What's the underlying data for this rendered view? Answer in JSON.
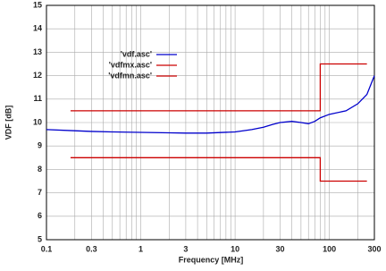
{
  "chart_data": {
    "type": "line",
    "x_label": "Frequency [MHz]",
    "y_label": "VDF [dB]",
    "x_log": true,
    "grid": true,
    "legend": "upper left",
    "xlim": [
      0.1,
      300
    ],
    "ylim": [
      5,
      15
    ],
    "xticks": [
      0.1,
      0.3,
      1,
      3,
      10,
      30,
      100,
      300
    ],
    "xminorticks": [
      0.2,
      0.4,
      0.5,
      0.6,
      0.7,
      0.8,
      0.9,
      2,
      4,
      5,
      6,
      7,
      8,
      9,
      20,
      40,
      50,
      60,
      70,
      80,
      90,
      200
    ],
    "yticks": [
      5,
      6,
      7,
      8,
      9,
      10,
      11,
      12,
      13,
      14,
      15
    ],
    "series": [
      {
        "name": "'vdf.asc'",
        "color": "#0000cc",
        "x": [
          0.1,
          0.2,
          0.3,
          0.5,
          1,
          2,
          3,
          5,
          10,
          15,
          20,
          25,
          30,
          40,
          50,
          60,
          70,
          80,
          100,
          150,
          200,
          250,
          300
        ],
        "values": [
          9.7,
          9.65,
          9.62,
          9.6,
          9.58,
          9.56,
          9.55,
          9.55,
          9.6,
          9.7,
          9.8,
          9.92,
          10.0,
          10.05,
          10.0,
          9.95,
          10.05,
          10.2,
          10.35,
          10.5,
          10.8,
          11.2,
          12.0
        ]
      },
      {
        "name": "'vdfmx.asc'",
        "color": "#cc0000",
        "x": [
          0.18,
          80,
          80,
          250
        ],
        "values": [
          10.5,
          10.5,
          12.5,
          12.5
        ]
      },
      {
        "name": "'vdfmn.asc'",
        "color": "#cc0000",
        "x": [
          0.18,
          80,
          80,
          250
        ],
        "values": [
          8.5,
          8.5,
          7.5,
          7.5
        ]
      }
    ]
  }
}
